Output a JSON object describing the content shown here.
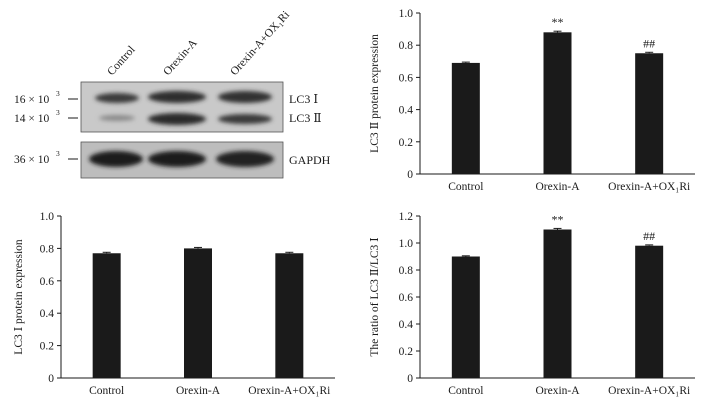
{
  "blot": {
    "lane_labels": [
      "Control",
      "Orexin-A",
      "Orexin-A+OX₁Ri"
    ],
    "markers": [
      {
        "mantissa": "16 × 10",
        "exp": "3"
      },
      {
        "mantissa": "14 × 10",
        "exp": "3"
      },
      {
        "mantissa": "36 × 10",
        "exp": "3"
      }
    ],
    "band_labels": [
      "LC3 Ⅰ",
      "LC3 Ⅱ",
      "GAPDH"
    ]
  },
  "chart_data": [
    {
      "type": "bar",
      "panel": "top-right",
      "categories": [
        "Control",
        "Orexin-A",
        "Orexin-A+OX₁Ri"
      ],
      "values": [
        0.69,
        0.88,
        0.75
      ],
      "errors": [
        0.005,
        0.007,
        0.006
      ],
      "annotations": [
        "",
        "**",
        "##"
      ],
      "ylabel": "LC3 Ⅱ protein expression",
      "xlabel": "",
      "ylim": [
        0,
        1.0
      ],
      "yticks": [
        "0",
        "0.2",
        "0.4",
        "0.6",
        "0.8",
        "1.0"
      ],
      "color": "#1a1a1a"
    },
    {
      "type": "bar",
      "panel": "bottom-left",
      "categories": [
        "Control",
        "Orexin-A",
        "Orexin-A+OX₁Ri"
      ],
      "values": [
        0.77,
        0.8,
        0.77
      ],
      "errors": [
        0.006,
        0.006,
        0.006
      ],
      "annotations": [
        "",
        "",
        ""
      ],
      "ylabel": "LC3 Ⅰ protein expression",
      "xlabel": "",
      "ylim": [
        0,
        1.0
      ],
      "yticks": [
        "0",
        "0.2",
        "0.4",
        "0.6",
        "0.8",
        "1.0"
      ],
      "color": "#1a1a1a"
    },
    {
      "type": "bar",
      "panel": "bottom-right",
      "categories": [
        "Control",
        "Orexin-A",
        "Orexin-A+OX₁Ri"
      ],
      "values": [
        0.9,
        1.1,
        0.98
      ],
      "errors": [
        0.005,
        0.008,
        0.006
      ],
      "annotations": [
        "",
        "**",
        "##"
      ],
      "ylabel": "The ratio of LC3 Ⅱ/LC3 Ⅰ",
      "xlabel": "",
      "ylim": [
        0,
        1.2
      ],
      "yticks": [
        "0",
        "0.2",
        "0.4",
        "0.6",
        "0.8",
        "1.0",
        "1.2"
      ],
      "color": "#1a1a1a"
    }
  ]
}
